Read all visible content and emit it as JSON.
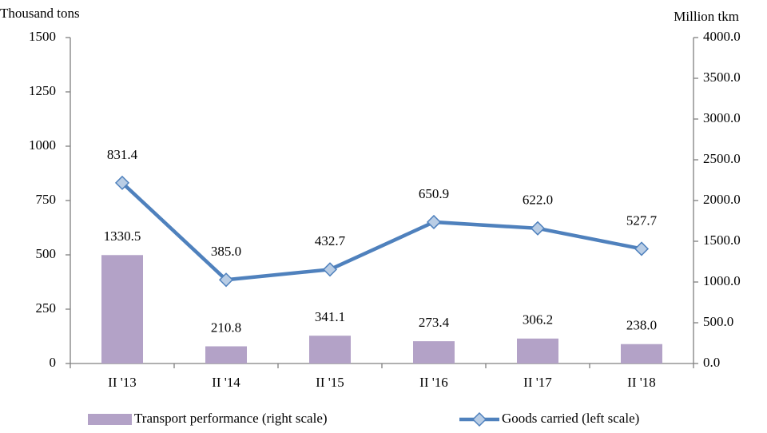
{
  "chart_data": {
    "type": "bar-line",
    "ylabel": "Thousand tons",
    "y2label": "Million tkm",
    "categories": [
      "II '13",
      "II '14",
      "II '15",
      "II '16",
      "II '17",
      "II '18"
    ],
    "series": [
      {
        "name": "Transport performance (right scale)",
        "type": "bar",
        "axis": "y2",
        "color": "#b3a2c7",
        "values": [
          1330.5,
          210.8,
          341.1,
          273.4,
          306.2,
          238.0
        ],
        "value_labels": [
          "1330.5",
          "210.8",
          "341.1",
          "273.4",
          "306.2",
          "238.0"
        ]
      },
      {
        "name": "Goods carried (left scale)",
        "type": "line",
        "axis": "y",
        "color": "#4f81bd",
        "values": [
          831.4,
          385.0,
          432.7,
          650.9,
          622.0,
          527.7
        ],
        "value_labels": [
          "831.4",
          "385.0",
          "432.7",
          "650.9",
          "622.0",
          "527.7"
        ]
      }
    ],
    "ylim": [
      0,
      1500
    ],
    "yticks": [
      0,
      250,
      500,
      750,
      1000,
      1250,
      1500
    ],
    "y2lim": [
      0,
      4000
    ],
    "y2ticks": [
      {
        "value": 0,
        "label": "0.0"
      },
      {
        "value": 500,
        "label": "500.0"
      },
      {
        "value": 1000,
        "label": "1000.0"
      },
      {
        "value": 1500,
        "label": "1500.0"
      },
      {
        "value": 2000,
        "label": "2000.0"
      },
      {
        "value": 2500,
        "label": "2500.0"
      },
      {
        "value": 3000,
        "label": "3000.0"
      },
      {
        "value": 3500,
        "label": "3500.0"
      },
      {
        "value": 4000,
        "label": "4000.0"
      }
    ],
    "legend": "bottom"
  }
}
